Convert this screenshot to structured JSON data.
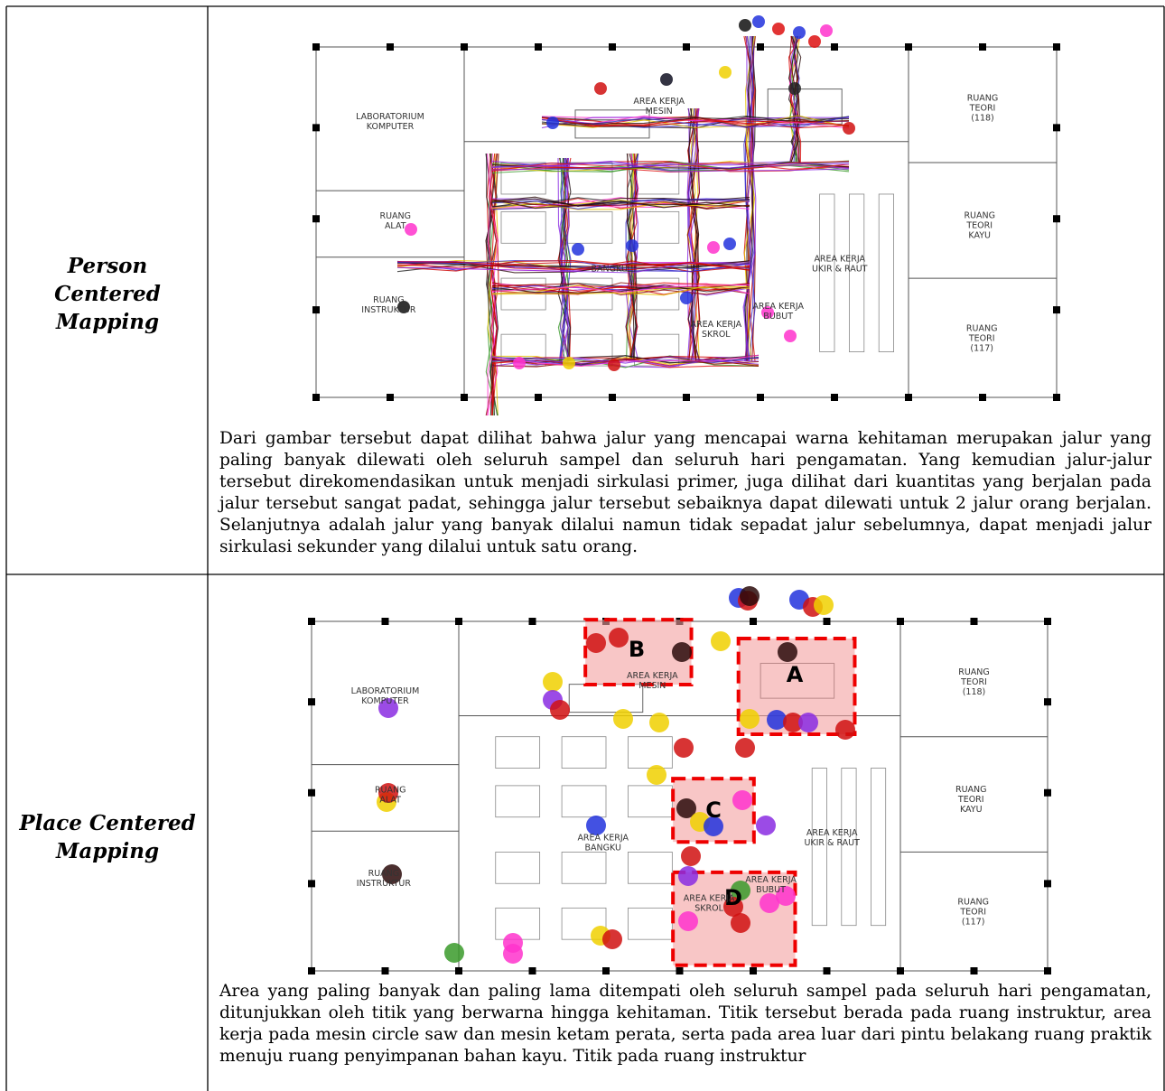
{
  "rows": [
    {
      "label": [
        "Person",
        "Centered",
        "Mapping"
      ],
      "plan_labels": [
        [
          "LABORATORIUM",
          "KOMPUTER"
        ],
        [
          "AREA KERJA",
          "MESIN"
        ],
        [
          "RUANG",
          "TEORI",
          "(118)"
        ],
        [
          "RUANG",
          "ALAT"
        ],
        [
          "RUANG",
          "TEORI",
          "KAYU"
        ],
        [
          "AREA KERJA",
          "UKIR & RAUT"
        ],
        [
          "BANGKU"
        ],
        [
          "RUANG",
          "INSTRUKTUR"
        ],
        [
          "AREA KERJA",
          "BUBUT"
        ],
        [
          "AREA KERJA",
          "SKROL"
        ],
        [
          "RUANG",
          "TEORI",
          "(117)"
        ]
      ],
      "text": "Dari gambar tersebut dapat dilihat bahwa jalur yang mencapai warna kehitaman merupakan jalur yang paling banyak dilewati oleh seluruh sampel dan seluruh hari pengamatan. Yang kemudian jalur-jalur tersebut direkomendasikan untuk menjadi sirkulasi primer, juga dilihat dari kuantitas yang berjalan pada jalur tersebut sangat padat, sehingga jalur tersebut sebaiknya dapat dilewati untuk 2 jalur orang berjalan. Selanjutnya adalah jalur yang banyak dilalui namun tidak sepadat jalur sebelumnya, dapat menjadi jalur sirkulasi sekunder yang dilalui untuk satu orang."
    },
    {
      "label": [
        "Place Centered",
        "Mapping"
      ],
      "plan_labels": [
        [
          "LABORATORIUM",
          "KOMPUTER"
        ],
        [
          "AREA KERJA",
          "MESIN"
        ],
        [
          "RUANG",
          "TEORI",
          "(118)"
        ],
        [
          "RUANG",
          "ALAT"
        ],
        [
          "RUANG",
          "TEORI",
          "KAYU"
        ],
        [
          "AREA KERJA",
          "UKIR & RAUT"
        ],
        [
          "AREA KERJA",
          "BANGKU"
        ],
        [
          "RUANG",
          "INSTRUKTUR"
        ],
        [
          "AREA KERJA",
          "BUBUT"
        ],
        [
          "AREA KERJA",
          "SKROL"
        ],
        [
          "RUANG",
          "TEORI",
          "(117)"
        ]
      ],
      "zones": [
        "A",
        "B",
        "C",
        "D"
      ],
      "text": "Area yang paling banyak dan paling lama ditempati oleh seluruh sampel pada seluruh hari pengamatan, ditunjukkan oleh titik yang berwarna hingga kehitaman. Titik tersebut berada pada ruang instruktur, area kerja pada mesin circle saw dan mesin ketam perata, serta pada area luar dari pintu belakang ruang praktik menuju ruang penyimpanan bahan kayu. Titik pada ruang instruktur"
    }
  ]
}
